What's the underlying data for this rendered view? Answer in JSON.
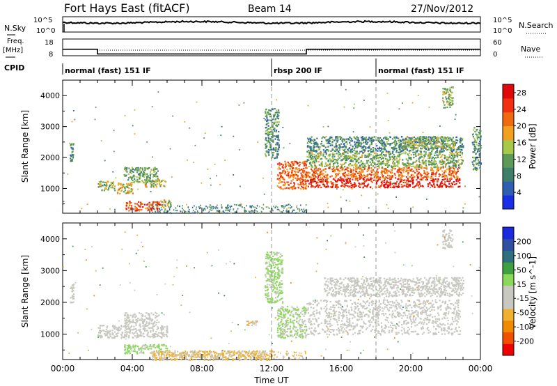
{
  "header": {
    "radar": "Fort Hays East (fitACF)",
    "beam": "Beam 14",
    "date": "27/Nov/2012"
  },
  "strip": {
    "nsky_label": "N.Sky",
    "nsearch_label": "N.Search",
    "noise_ticks": [
      "10^5",
      "10^0"
    ],
    "freq_label": "Freq.",
    "freq_unit": "[MHz]",
    "freq_ticks": [
      "18",
      "8"
    ],
    "nave_label": "Nave",
    "nave_ticks": [
      "60",
      "0"
    ],
    "cpid_label": "CPID"
  },
  "cpid": [
    {
      "start_h": 0,
      "end_h": 12,
      "name": "normal (fast) 151 IF"
    },
    {
      "start_h": 12,
      "end_h": 18,
      "name": "rbsp 200 IF"
    },
    {
      "start_h": 18,
      "end_h": 24,
      "name": "normal (fast) 151 IF"
    }
  ],
  "freq_steps": [
    {
      "t0": 0,
      "t1": 2,
      "mhz": 13.2
    },
    {
      "t0": 2,
      "t1": 14,
      "mhz": 9.4
    },
    {
      "t0": 14,
      "t1": 24,
      "mhz": 13.2
    }
  ],
  "colors": {
    "power": [
      "#1a2ee6",
      "#2f5fb0",
      "#3f7f6a",
      "#5d9a5a",
      "#a7c84a",
      "#f2a020",
      "#f06a10",
      "#f03010",
      "#e00808"
    ],
    "velocity": [
      "#f00000",
      "#f05000",
      "#f08a00",
      "#f0b030",
      "#c8c8c0",
      "#c8c8c0",
      "#8cd85a",
      "#3fa040",
      "#2f6f7f",
      "#2f4fa0",
      "#1a2ae0"
    ]
  },
  "chart_data": [
    {
      "type": "heatmap",
      "quantity": "Power",
      "xlabel": "",
      "ylabel": "Slant Range [km]",
      "xlim": [
        0,
        24
      ],
      "ylim": [
        200,
        4500
      ],
      "yticks": [
        1000,
        2000,
        3000,
        4000
      ],
      "colorbar": {
        "label": "Power [dB]",
        "ticks": [
          "4",
          "8",
          "12",
          "16",
          "20",
          "24",
          "28"
        ],
        "range": [
          0,
          30
        ]
      },
      "echo_regions": [
        {
          "t0": 0.4,
          "t1": 0.6,
          "r0": 1900,
          "r1": 2500,
          "level": 10
        },
        {
          "t0": 2.0,
          "t1": 3.0,
          "r0": 950,
          "r1": 1250,
          "level": 14
        },
        {
          "t0": 3.1,
          "t1": 4.0,
          "r0": 850,
          "r1": 1250,
          "level": 16
        },
        {
          "t0": 3.5,
          "t1": 5.5,
          "r0": 1200,
          "r1": 1700,
          "level": 12
        },
        {
          "t0": 4.7,
          "t1": 5.9,
          "r0": 1050,
          "r1": 1300,
          "level": 16
        },
        {
          "t0": 3.6,
          "t1": 5.6,
          "r0": 300,
          "r1": 600,
          "level": 24
        },
        {
          "t0": 5.6,
          "t1": 6.2,
          "r0": 400,
          "r1": 650,
          "level": 16
        },
        {
          "t0": 11.6,
          "t1": 12.4,
          "r0": 2000,
          "r1": 3600,
          "level": 10
        },
        {
          "t0": 12.3,
          "t1": 14.0,
          "r0": 1000,
          "r1": 1900,
          "level": 22
        },
        {
          "t0": 14.0,
          "t1": 22.8,
          "r0": 1050,
          "r1": 1350,
          "level": 27
        },
        {
          "t0": 14.0,
          "t1": 22.8,
          "r0": 1350,
          "r1": 1700,
          "level": 22
        },
        {
          "t0": 14.0,
          "t1": 23.0,
          "r0": 1700,
          "r1": 2200,
          "level": 13
        },
        {
          "t0": 14.0,
          "t1": 23.0,
          "r0": 2200,
          "r1": 2700,
          "level": 9
        },
        {
          "t0": 19.5,
          "t1": 22.5,
          "r0": 2300,
          "r1": 2700,
          "level": 14
        },
        {
          "t0": 21.8,
          "t1": 22.4,
          "r0": 3600,
          "r1": 4300,
          "level": 14
        },
        {
          "t0": 23.5,
          "t1": 24.0,
          "r0": 1600,
          "r1": 3000,
          "level": 10
        }
      ]
    },
    {
      "type": "heatmap",
      "quantity": "Velocity",
      "xlabel": "Time UT",
      "ylabel": "Slant Range [km]",
      "xlim": [
        0,
        24
      ],
      "ylim": [
        200,
        4500
      ],
      "xticks": [
        "00:00",
        "04:00",
        "08:00",
        "12:00",
        "16:00",
        "20:00",
        "00:00"
      ],
      "yticks": [
        1000,
        2000,
        3000,
        4000
      ],
      "colorbar": {
        "label": "Velocity [m s^-1]",
        "ticks": [
          "200",
          "100",
          "50",
          "15",
          "-15",
          "-50",
          "-100",
          "-200"
        ],
        "range": [
          -250,
          250
        ]
      },
      "echo_regions": [
        {
          "t0": 0.4,
          "t1": 0.6,
          "r0": 2000,
          "r1": 2600,
          "level": 0
        },
        {
          "t0": 2.0,
          "t1": 6.0,
          "r0": 900,
          "r1": 1300,
          "level": 0
        },
        {
          "t0": 3.5,
          "t1": 5.5,
          "r0": 1300,
          "r1": 1700,
          "level": 0
        },
        {
          "t0": 3.5,
          "t1": 6.0,
          "r0": 400,
          "r1": 700,
          "level": 30
        },
        {
          "t0": 5.0,
          "t1": 12.0,
          "r0": 200,
          "r1": 500,
          "level": -70
        },
        {
          "t0": 10.5,
          "t1": 11.2,
          "r0": 1300,
          "r1": 1450,
          "level": -60
        },
        {
          "t0": 11.6,
          "t1": 12.6,
          "r0": 2000,
          "r1": 3600,
          "level": 30
        },
        {
          "t0": 12.3,
          "t1": 14.0,
          "r0": 900,
          "r1": 1900,
          "level": 25
        },
        {
          "t0": 14.0,
          "t1": 22.8,
          "r0": 1000,
          "r1": 2100,
          "level": 0
        },
        {
          "t0": 15.0,
          "t1": 23.0,
          "r0": 2200,
          "r1": 2800,
          "level": 0
        },
        {
          "t0": 21.8,
          "t1": 22.4,
          "r0": 3700,
          "r1": 4300,
          "level": 0
        }
      ]
    }
  ]
}
